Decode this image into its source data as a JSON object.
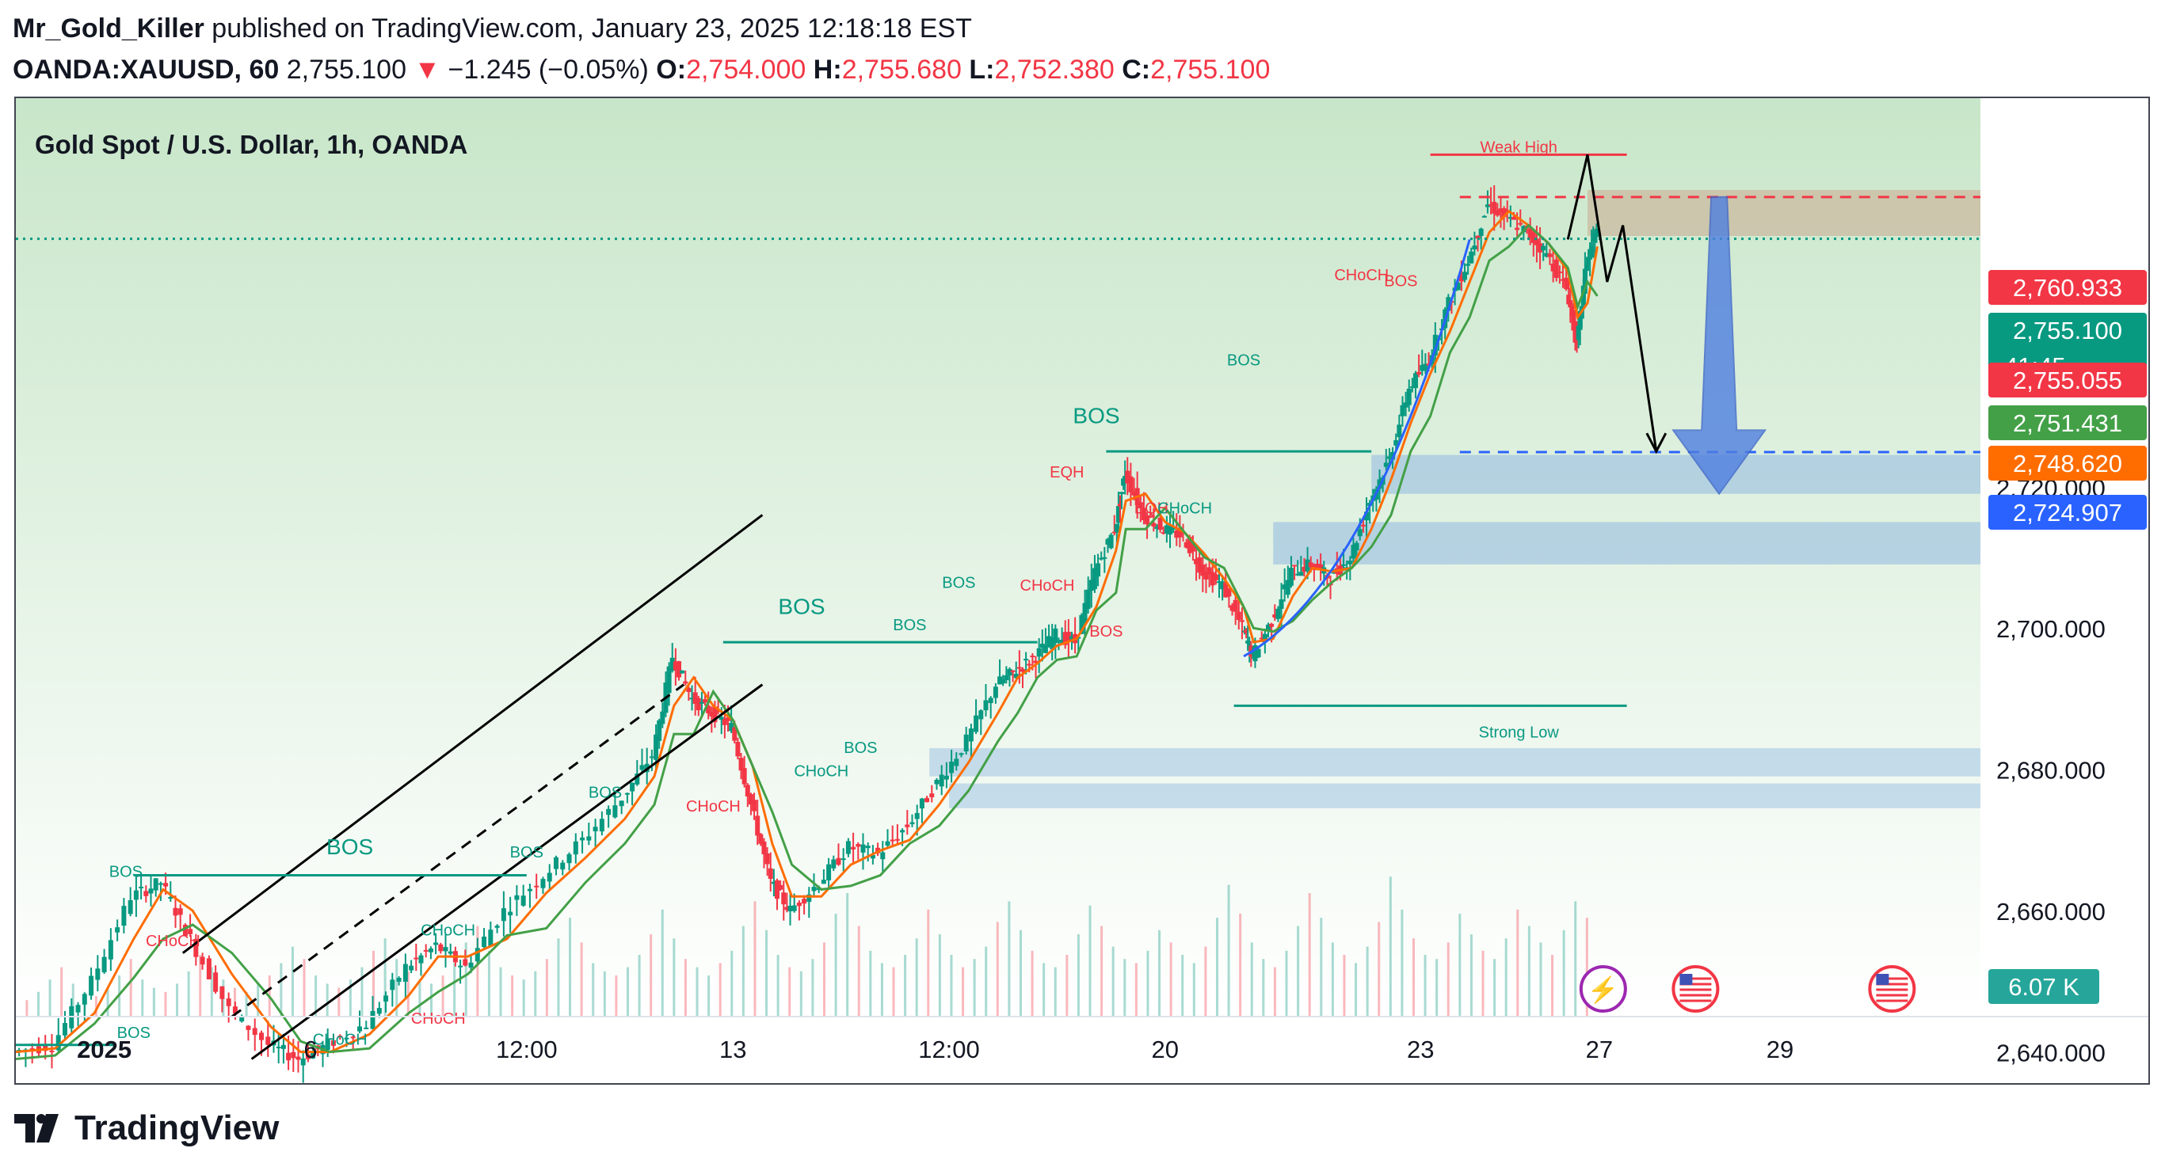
{
  "header": {
    "author": "Mr_Gold_Killer",
    "published_text": "published on TradingView.com, January 23, 2025 12:18:18 EST",
    "symbol": "OANDA:XAUUSD, 60",
    "last": "2,755.100",
    "arrow": "▼",
    "change": "−1.245 (−0.05%)",
    "o_label": "O:",
    "o_value": "2,754.000",
    "h_label": "H:",
    "h_value": "2,755.680",
    "l_label": "L:",
    "l_value": "2,752.380",
    "c_label": "C:",
    "c_value": "2,755.100"
  },
  "footer": {
    "brand": "TradingView"
  },
  "colors": {
    "bull": "#089981",
    "bear": "#f23645",
    "ma_fast": "#ff6d00",
    "ma_slow": "#43a047",
    "zone_blue": "#8fb8e0",
    "zone_supply": "#c9b9a0",
    "arrow_blue": "#4f7fe0"
  },
  "chart_data": {
    "type": "candlestick",
    "title": "Gold Spot / U.S. Dollar, 1h, OANDA",
    "ylim": [
      2645,
      2775
    ],
    "y_ticks": [
      {
        "value": 2660,
        "label": "2,660.000"
      },
      {
        "value": 2680,
        "label": "2,680.000"
      },
      {
        "value": 2700,
        "label": "2,700.000"
      },
      {
        "value": 2720,
        "label": "2,720.000"
      },
      {
        "value": 2640,
        "label": "2,640.000"
      }
    ],
    "x_ticks": [
      "2025",
      "6",
      "12:00",
      "13",
      "12:00",
      "20",
      "23",
      "27",
      "29"
    ],
    "price_tags": [
      {
        "label": "2,760.933",
        "value": 2760.933,
        "color": "#f23645"
      },
      {
        "label": "2,755.100",
        "sub": "41:45",
        "value": 2755.1,
        "color": "#089981"
      },
      {
        "label": "2,755.055",
        "value": 2755.055,
        "color": "#f23645"
      },
      {
        "label": "2,751.431",
        "value": 2751.431,
        "color": "#43a047"
      },
      {
        "label": "2,748.620",
        "value": 2748.62,
        "color": "#ff6d00"
      },
      {
        "label": "2,724.907",
        "value": 2724.907,
        "color": "#2962ff"
      }
    ],
    "volume_tag": "6.07 K",
    "path_points": [
      [
        0.0,
        2640
      ],
      [
        0.02,
        2641
      ],
      [
        0.04,
        2650
      ],
      [
        0.06,
        2662
      ],
      [
        0.075,
        2664
      ],
      [
        0.09,
        2656
      ],
      [
        0.11,
        2646
      ],
      [
        0.13,
        2641
      ],
      [
        0.145,
        2639
      ],
      [
        0.16,
        2641
      ],
      [
        0.18,
        2644
      ],
      [
        0.2,
        2652
      ],
      [
        0.215,
        2655
      ],
      [
        0.23,
        2652
      ],
      [
        0.25,
        2660
      ],
      [
        0.27,
        2665
      ],
      [
        0.29,
        2670
      ],
      [
        0.31,
        2676
      ],
      [
        0.325,
        2682
      ],
      [
        0.335,
        2696
      ],
      [
        0.345,
        2690
      ],
      [
        0.355,
        2688
      ],
      [
        0.365,
        2686
      ],
      [
        0.375,
        2675
      ],
      [
        0.385,
        2664
      ],
      [
        0.395,
        2660
      ],
      [
        0.41,
        2664
      ],
      [
        0.425,
        2669
      ],
      [
        0.44,
        2668
      ],
      [
        0.455,
        2672
      ],
      [
        0.47,
        2678
      ],
      [
        0.485,
        2684
      ],
      [
        0.5,
        2692
      ],
      [
        0.51,
        2694
      ],
      [
        0.52,
        2696
      ],
      [
        0.53,
        2699
      ],
      [
        0.54,
        2698
      ],
      [
        0.55,
        2708
      ],
      [
        0.56,
        2714
      ],
      [
        0.565,
        2722
      ],
      [
        0.575,
        2716
      ],
      [
        0.585,
        2714
      ],
      [
        0.595,
        2713
      ],
      [
        0.605,
        2708
      ],
      [
        0.615,
        2706
      ],
      [
        0.625,
        2700
      ],
      [
        0.63,
        2696
      ],
      [
        0.64,
        2701
      ],
      [
        0.65,
        2708
      ],
      [
        0.66,
        2709
      ],
      [
        0.67,
        2707
      ],
      [
        0.68,
        2710
      ],
      [
        0.69,
        2718
      ],
      [
        0.7,
        2724
      ],
      [
        0.71,
        2734
      ],
      [
        0.72,
        2738
      ],
      [
        0.73,
        2746
      ],
      [
        0.74,
        2752
      ],
      [
        0.75,
        2760
      ],
      [
        0.76,
        2758
      ],
      [
        0.77,
        2756
      ],
      [
        0.78,
        2753
      ],
      [
        0.79,
        2748
      ],
      [
        0.795,
        2740
      ],
      [
        0.8,
        2752
      ],
      [
        0.805,
        2756
      ]
    ],
    "volume": [
      4,
      6,
      9,
      12,
      8,
      6,
      5,
      7,
      10,
      14,
      9,
      7,
      6,
      8,
      11,
      15,
      12,
      9,
      7,
      6,
      8,
      10,
      13,
      17,
      14,
      10,
      8,
      7,
      9,
      12,
      16,
      19,
      14,
      11,
      9,
      8,
      10,
      13,
      18,
      22,
      16,
      12,
      10,
      9,
      11,
      14,
      19,
      24,
      18,
      13,
      11,
      10,
      12,
      15,
      20,
      26,
      19,
      14,
      12,
      10,
      13,
      16,
      22,
      28,
      21,
      15,
      12,
      11,
      14,
      18,
      25,
      30,
      22,
      16,
      13,
      12,
      15,
      19,
      26,
      20,
      15,
      12,
      14,
      17,
      23,
      28,
      21,
      16,
      13,
      12,
      15,
      20,
      27,
      22,
      17,
      14,
      13,
      16,
      21,
      18,
      15,
      13,
      17,
      24,
      32,
      25,
      18,
      14,
      12,
      16,
      22,
      30,
      24,
      18,
      15,
      13,
      17,
      23,
      34,
      26,
      19,
      15,
      14,
      18,
      25,
      20,
      16,
      14,
      19,
      26,
      22,
      18,
      15,
      21,
      28,
      24
    ],
    "structure_labels": [
      {
        "text": "BOS",
        "color": "#089981",
        "size": "large",
        "x": 0.17,
        "y": 2668
      },
      {
        "text": "BOS",
        "color": "#089981",
        "size": "large",
        "x": 0.4,
        "y": 2702
      },
      {
        "text": "BOS",
        "color": "#089981",
        "size": "large",
        "x": 0.55,
        "y": 2729
      },
      {
        "text": "BOS",
        "color": "#089981",
        "size": "small",
        "x": 0.056,
        "y": 2664.8
      },
      {
        "text": "BOS",
        "color": "#089981",
        "size": "small",
        "x": 0.06,
        "y": 2642
      },
      {
        "text": "CHoCH",
        "color": "#f23645",
        "size": "small",
        "x": 0.08,
        "y": 2655
      },
      {
        "text": "CHoCH",
        "color": "#089981",
        "size": "small",
        "x": 0.165,
        "y": 2641
      },
      {
        "text": "CHoCH",
        "color": "#089981",
        "size": "small",
        "x": 0.22,
        "y": 2656.5
      },
      {
        "text": "CHoCH",
        "color": "#f23645",
        "size": "small",
        "x": 0.215,
        "y": 2644
      },
      {
        "text": "BOS",
        "color": "#089981",
        "size": "small",
        "x": 0.26,
        "y": 2667.5
      },
      {
        "text": "BOS",
        "color": "#089981",
        "size": "small",
        "x": 0.3,
        "y": 2676
      },
      {
        "text": "CHoCH",
        "color": "#f23645",
        "size": "small",
        "x": 0.355,
        "y": 2674
      },
      {
        "text": "CHoCH",
        "color": "#089981",
        "size": "small",
        "x": 0.41,
        "y": 2679
      },
      {
        "text": "BOS",
        "color": "#089981",
        "size": "small",
        "x": 0.43,
        "y": 2682.3
      },
      {
        "text": "BOS",
        "color": "#089981",
        "size": "small",
        "x": 0.455,
        "y": 2699.7
      },
      {
        "text": "BOS",
        "color": "#089981",
        "size": "small",
        "x": 0.48,
        "y": 2705.7
      },
      {
        "text": "EQH",
        "color": "#f23645",
        "size": "small",
        "x": 0.535,
        "y": 2721.3
      },
      {
        "text": "CHoCH",
        "color": "#f23645",
        "size": "small",
        "x": 0.525,
        "y": 2705.3
      },
      {
        "text": "BOS",
        "color": "#f23645",
        "size": "small",
        "x": 0.555,
        "y": 2698.8
      },
      {
        "text": "EQH",
        "color": "#f23645",
        "size": "small",
        "x": 0.578,
        "y": 2716.2
      },
      {
        "text": "CHoCH",
        "color": "#089981",
        "size": "small",
        "x": 0.595,
        "y": 2716.2
      },
      {
        "text": "BOS",
        "color": "#089981",
        "size": "small",
        "x": 0.625,
        "y": 2737.2
      },
      {
        "text": "CHoCH",
        "color": "#f23645",
        "size": "small",
        "x": 0.685,
        "y": 2749.2
      },
      {
        "text": "BOS",
        "color": "#f23645",
        "size": "small",
        "x": 0.705,
        "y": 2748.4
      },
      {
        "text": "Weak High",
        "color": "#f23645",
        "size": "small",
        "x": 0.765,
        "y": 2767.3
      },
      {
        "text": "Strong Low",
        "color": "#089981",
        "size": "small",
        "x": 0.765,
        "y": 2684.5
      }
    ]
  }
}
